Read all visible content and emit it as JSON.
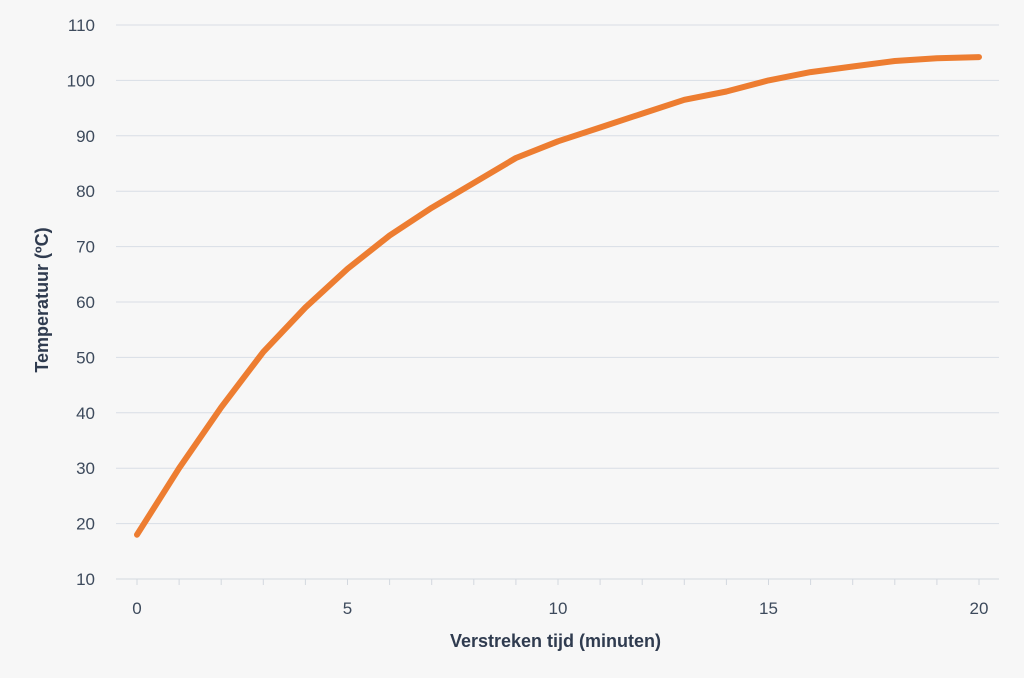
{
  "chart_data": {
    "type": "line",
    "title": "",
    "xlabel": "Verstreken tijd (minuten)",
    "ylabel": "Temperatuur  (ºC)",
    "xlim": [
      0,
      20
    ],
    "ylim": [
      10,
      110
    ],
    "x_ticks": [
      0,
      5,
      10,
      15,
      20
    ],
    "y_ticks": [
      10,
      20,
      30,
      40,
      50,
      60,
      70,
      80,
      90,
      100,
      110
    ],
    "grid": "horizontal",
    "legend": "none",
    "series": [
      {
        "color": "#ed7d31",
        "x": [
          0,
          1,
          2,
          3,
          4,
          5,
          6,
          7,
          8,
          9,
          10,
          11,
          12,
          13,
          14,
          15,
          16,
          17,
          18,
          19,
          20
        ],
        "y": [
          18,
          30,
          41,
          51,
          59,
          66,
          72,
          77,
          81.5,
          86,
          89,
          91.5,
          94,
          96.5,
          98,
          100,
          101.5,
          102.5,
          103.5,
          104,
          104.2
        ]
      }
    ]
  }
}
